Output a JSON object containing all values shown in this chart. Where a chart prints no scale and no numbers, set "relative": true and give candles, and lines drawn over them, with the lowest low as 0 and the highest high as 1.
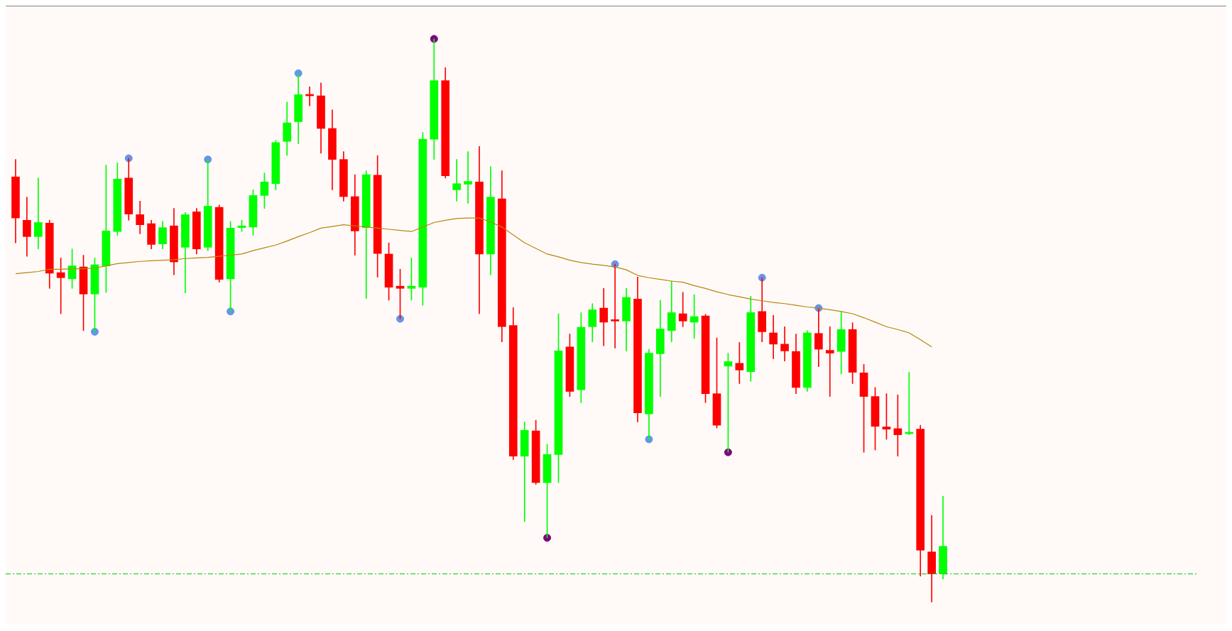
{
  "chart_data": {
    "type": "candlestick",
    "relative": true,
    "categories": [
      null,
      null,
      null,
      null,
      null,
      null,
      null,
      null,
      null,
      null,
      null,
      null,
      null,
      null,
      null,
      null,
      null,
      null,
      null,
      null,
      null,
      null,
      null,
      null,
      null,
      null,
      null,
      null,
      null,
      null,
      null,
      null,
      null,
      null,
      null,
      null,
      null,
      null,
      null,
      null,
      null,
      null,
      null,
      null,
      null,
      null,
      null,
      null,
      null,
      null,
      null,
      null,
      null,
      null,
      null,
      null,
      null,
      null,
      null,
      null,
      null,
      null,
      null,
      null,
      null,
      null,
      null,
      null,
      null,
      null,
      null,
      null,
      null,
      null,
      null,
      null,
      null,
      null,
      null,
      null,
      null,
      null,
      null
    ],
    "ohlc": [
      [
        0.755,
        0.786,
        0.638,
        0.682
      ],
      [
        0.678,
        0.719,
        0.614,
        0.649
      ],
      [
        0.649,
        0.753,
        0.627,
        0.674
      ],
      [
        0.673,
        0.678,
        0.557,
        0.584
      ],
      [
        0.585,
        0.611,
        0.512,
        0.576
      ],
      [
        0.574,
        0.627,
        0.557,
        0.597
      ],
      [
        0.595,
        0.616,
        0.482,
        0.547
      ],
      [
        0.547,
        0.611,
        0.48,
        0.599
      ],
      [
        0.597,
        0.776,
        0.55,
        0.659
      ],
      [
        0.658,
        0.78,
        0.651,
        0.751
      ],
      [
        0.753,
        0.788,
        0.678,
        0.689
      ],
      [
        0.688,
        0.712,
        0.654,
        0.67
      ],
      [
        0.672,
        0.678,
        0.627,
        0.635
      ],
      [
        0.636,
        0.676,
        0.627,
        0.665
      ],
      [
        0.668,
        0.699,
        0.581,
        0.604
      ],
      [
        0.63,
        0.692,
        0.549,
        0.688
      ],
      [
        0.693,
        0.699,
        0.618,
        0.627
      ],
      [
        0.63,
        0.786,
        0.624,
        0.703
      ],
      [
        0.701,
        0.705,
        0.568,
        0.573
      ],
      [
        0.574,
        0.676,
        0.516,
        0.664
      ],
      [
        0.665,
        0.678,
        0.658,
        0.668
      ],
      [
        0.666,
        0.732,
        0.651,
        0.722
      ],
      [
        0.722,
        0.762,
        0.699,
        0.746
      ],
      [
        0.743,
        0.82,
        0.732,
        0.816
      ],
      [
        0.818,
        0.888,
        0.793,
        0.851
      ],
      [
        0.853,
        0.939,
        0.814,
        0.901
      ],
      [
        0.901,
        0.915,
        0.881,
        0.899
      ],
      [
        0.899,
        0.922,
        0.797,
        0.841
      ],
      [
        0.841,
        0.874,
        0.732,
        0.786
      ],
      [
        0.786,
        0.8,
        0.712,
        0.72
      ],
      [
        0.72,
        0.759,
        0.616,
        0.659
      ],
      [
        0.665,
        0.766,
        0.539,
        0.759
      ],
      [
        0.758,
        0.793,
        0.577,
        0.619
      ],
      [
        0.618,
        0.638,
        0.536,
        0.559
      ],
      [
        0.561,
        0.591,
        0.503,
        0.557
      ],
      [
        0.557,
        0.611,
        0.536,
        0.561
      ],
      [
        0.559,
        0.834,
        0.527,
        0.822
      ],
      [
        0.822,
        1,
        0.786,
        0.926
      ],
      [
        0.926,
        0.949,
        0.753,
        0.757
      ],
      [
        0.732,
        0.786,
        0.712,
        0.743
      ],
      [
        0.742,
        0.8,
        0.708,
        0.747
      ],
      [
        0.746,
        0.809,
        0.512,
        0.618
      ],
      [
        0.618,
        0.773,
        0.581,
        0.719
      ],
      [
        0.716,
        0.766,
        0.462,
        0.489
      ],
      [
        0.491,
        0.523,
        0.253,
        0.259
      ],
      [
        0.259,
        0.32,
        0.143,
        0.305
      ],
      [
        0.304,
        0.323,
        0.209,
        0.212
      ],
      [
        0.212,
        0.28,
        0.114,
        0.262
      ],
      [
        0.262,
        0.512,
        0.212,
        0.446
      ],
      [
        0.453,
        0.476,
        0.365,
        0.374
      ],
      [
        0.377,
        0.514,
        0.354,
        0.488
      ],
      [
        0.489,
        0.53,
        0.462,
        0.519
      ],
      [
        0.522,
        0.557,
        0.455,
        0.497
      ],
      [
        0.5,
        0.6,
        0.451,
        0.499
      ],
      [
        0.499,
        0.557,
        0.446,
        0.541
      ],
      [
        0.538,
        0.577,
        0.32,
        0.336
      ],
      [
        0.334,
        0.449,
        0.289,
        0.442
      ],
      [
        0.441,
        0.536,
        0.365,
        0.485
      ],
      [
        0.482,
        0.57,
        0.462,
        0.514
      ],
      [
        0.512,
        0.55,
        0.489,
        0.499
      ],
      [
        0.497,
        0.546,
        0.468,
        0.507
      ],
      [
        0.508,
        0.511,
        0.354,
        0.37
      ],
      [
        0.37,
        0.469,
        0.309,
        0.314
      ],
      [
        0.419,
        0.442,
        0.266,
        0.427
      ],
      [
        0.424,
        0.461,
        0.388,
        0.412
      ],
      [
        0.409,
        0.543,
        0.392,
        0.514
      ],
      [
        0.516,
        0.576,
        0.462,
        0.48
      ],
      [
        0.478,
        0.509,
        0.432,
        0.458
      ],
      [
        0.458,
        0.489,
        0.428,
        0.446
      ],
      [
        0.445,
        0.476,
        0.37,
        0.381
      ],
      [
        0.381,
        0.482,
        0.374,
        0.478
      ],
      [
        0.477,
        0.522,
        0.418,
        0.449
      ],
      [
        0.447,
        0.489,
        0.365,
        0.442
      ],
      [
        0.445,
        0.516,
        0.405,
        0.484
      ],
      [
        0.484,
        0.496,
        0.388,
        0.408
      ],
      [
        0.407,
        0.422,
        0.266,
        0.365
      ],
      [
        0.365,
        0.381,
        0.27,
        0.312
      ],
      [
        0.311,
        0.37,
        0.289,
        0.307
      ],
      [
        0.308,
        0.368,
        0.259,
        0.297
      ],
      [
        0.299,
        0.408,
        0.297,
        0.301
      ],
      [
        0.307,
        0.314,
        0.046,
        0.092
      ],
      [
        0.089,
        0.154,
        0,
        0.05
      ],
      [
        0.05,
        0.188,
        0.041,
        0.099
      ]
    ],
    "colors": [
      "#ff0000",
      "#ff0000",
      "#00ff00",
      "#ff0000",
      "#ff0000",
      "#00ff00",
      "#ff0000",
      "#00ff00",
      "#00ff00",
      "#00ff00",
      "#ff0000",
      "#ff0000",
      "#ff0000",
      "#00ff00",
      "#ff0000",
      "#00ff00",
      "#ff0000",
      "#00ff00",
      "#ff0000",
      "#00ff00",
      "#00ff00",
      "#00ff00",
      "#00ff00",
      "#00ff00",
      "#00ff00",
      "#00ff00",
      "#ff0000",
      "#ff0000",
      "#ff0000",
      "#ff0000",
      "#ff0000",
      "#00ff00",
      "#ff0000",
      "#ff0000",
      "#ff0000",
      "#00ff00",
      "#00ff00",
      "#00ff00",
      "#ff0000",
      "#00ff00",
      "#00ff00",
      "#ff0000",
      "#00ff00",
      "#ff0000",
      "#ff0000",
      "#00ff00",
      "#ff0000",
      "#00ff00",
      "#00ff00",
      "#ff0000",
      "#00ff00",
      "#00ff00",
      "#ff0000",
      "#ff0000",
      "#00ff00",
      "#ff0000",
      "#00ff00",
      "#00ff00",
      "#00ff00",
      "#ff0000",
      "#00ff00",
      "#ff0000",
      "#ff0000",
      "#00ff00",
      "#ff0000",
      "#00ff00",
      "#ff0000",
      "#ff0000",
      "#ff0000",
      "#ff0000",
      "#00ff00",
      "#ff0000",
      "#ff0000",
      "#00ff00",
      "#ff0000",
      "#ff0000",
      "#ff0000",
      "#ff0000",
      "#ff0000",
      "#00ff00",
      "#ff0000",
      "#ff0000",
      "#00ff00"
    ],
    "series": [
      {
        "type": "line",
        "color": "#b8860b",
        "values": [
          0.583,
          0.585,
          0.587,
          0.591,
          0.591,
          0.592,
          0.592,
          0.593,
          0.597,
          0.601,
          0.603,
          0.605,
          0.606,
          0.607,
          0.608,
          0.61,
          0.611,
          0.612,
          0.614,
          0.616,
          0.618,
          0.624,
          0.629,
          0.634,
          0.641,
          0.649,
          0.656,
          0.664,
          0.667,
          0.67,
          0.668,
          0.666,
          0.664,
          0.662,
          0.66,
          0.658,
          0.666,
          0.674,
          0.678,
          0.681,
          0.682,
          0.682,
          0.675,
          0.666,
          0.652,
          0.638,
          0.628,
          0.618,
          0.613,
          0.607,
          0.603,
          0.6,
          0.598,
          0.595,
          0.59,
          0.58,
          0.576,
          0.573,
          0.57,
          0.568,
          0.562,
          0.557,
          0.551,
          0.546,
          0.542,
          0.538,
          0.535,
          0.532,
          0.53,
          0.527,
          0.524,
          0.522,
          0.519,
          0.516,
          0.512,
          0.505,
          0.497,
          0.489,
          0.484,
          0.478,
          0.466,
          0.453,
          null
        ]
      },
      {
        "type": "scatter",
        "color": "#6495ed",
        "marker": "circle",
        "values": [
          null,
          null,
          null,
          null,
          null,
          null,
          null,
          0.48,
          null,
          null,
          0.788,
          null,
          null,
          null,
          null,
          null,
          null,
          0.786,
          null,
          0.516,
          null,
          null,
          null,
          null,
          null,
          0.939,
          null,
          null,
          null,
          null,
          null,
          null,
          null,
          null,
          0.503,
          null,
          null,
          null,
          null,
          null,
          null,
          null,
          null,
          null,
          null,
          null,
          null,
          null,
          null,
          null,
          null,
          null,
          null,
          0.6,
          null,
          null,
          0.289,
          null,
          null,
          null,
          null,
          null,
          null,
          null,
          null,
          null,
          0.576,
          null,
          null,
          null,
          null,
          0.522,
          null,
          null,
          null,
          null,
          null,
          null,
          null,
          null,
          null,
          null,
          null
        ]
      },
      {
        "type": "scatter",
        "color": "#800080",
        "marker": "circle",
        "values": [
          null,
          null,
          null,
          null,
          null,
          null,
          null,
          null,
          null,
          null,
          null,
          null,
          null,
          null,
          null,
          null,
          null,
          null,
          null,
          null,
          null,
          null,
          null,
          null,
          null,
          null,
          null,
          null,
          null,
          null,
          null,
          null,
          null,
          null,
          null,
          null,
          null,
          1,
          null,
          null,
          null,
          null,
          null,
          null,
          null,
          null,
          null,
          0.114,
          null,
          null,
          null,
          null,
          null,
          null,
          null,
          null,
          null,
          null,
          null,
          null,
          null,
          null,
          null,
          0.266,
          null,
          null,
          null,
          null,
          null,
          null,
          null,
          null,
          null,
          null,
          null,
          null,
          null,
          null,
          null,
          null,
          null,
          null,
          null
        ]
      }
    ],
    "ref_lines": [
      {
        "axis": "y",
        "value": 0.05,
        "color": "#00cc00",
        "line_style": "dashed"
      }
    ]
  }
}
